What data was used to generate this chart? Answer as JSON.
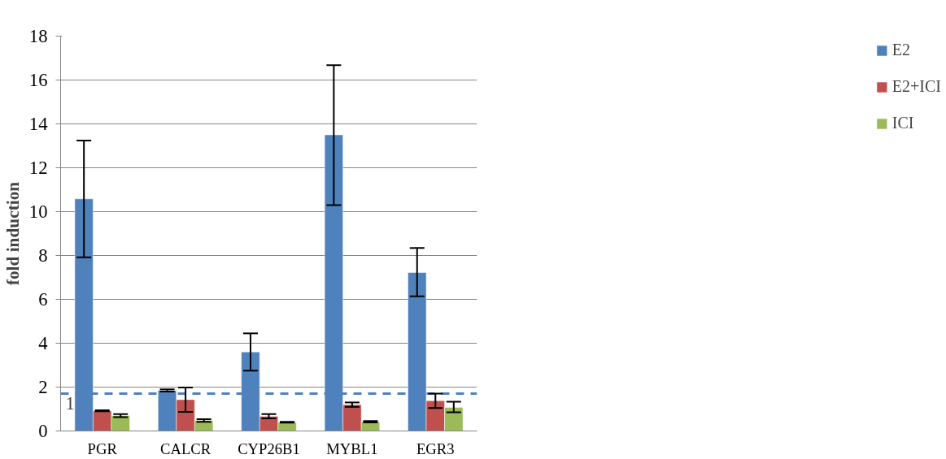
{
  "chart_data": {
    "type": "bar",
    "ylabel": "fold induction",
    "categories": [
      "PGR",
      "CALCR",
      "CYP26B1",
      "MYBL1",
      "EGR3"
    ],
    "series": [
      {
        "name": "E2",
        "color": "#4f81bd",
        "values": [
          10.58,
          1.85,
          3.6,
          13.5,
          7.22
        ],
        "errors": [
          [
            7.92,
            13.24
          ],
          [
            1.8,
            1.9
          ],
          [
            2.75,
            4.45
          ],
          [
            10.3,
            16.68
          ],
          [
            6.14,
            8.34
          ]
        ]
      },
      {
        "name": "E2+ICI",
        "color": "#c0504d",
        "values": [
          0.92,
          1.43,
          0.67,
          1.2,
          1.38
        ],
        "errors": [
          [
            0.9,
            0.94
          ],
          [
            0.87,
            1.98
          ],
          [
            0.57,
            0.77
          ],
          [
            1.1,
            1.3
          ],
          [
            1.05,
            1.7
          ]
        ]
      },
      {
        "name": "ICI",
        "color": "#9bbb59",
        "values": [
          0.7,
          0.48,
          0.4,
          0.42,
          1.07
        ],
        "errors": [
          [
            0.63,
            0.77
          ],
          [
            0.42,
            0.54
          ],
          [
            0.38,
            0.42
          ],
          [
            0.39,
            0.45
          ],
          [
            0.85,
            1.33
          ]
        ]
      }
    ],
    "ylim": [
      0,
      18
    ],
    "yticks": [
      0,
      2,
      4,
      6,
      8,
      10,
      12,
      14,
      16,
      18
    ],
    "grid": "y",
    "legend": "right",
    "ref_lines": [
      {
        "axis": "y",
        "value": 1.7,
        "color": "#4f81bd",
        "line_style": "dashed"
      }
    ],
    "annotations": [
      "1"
    ]
  }
}
